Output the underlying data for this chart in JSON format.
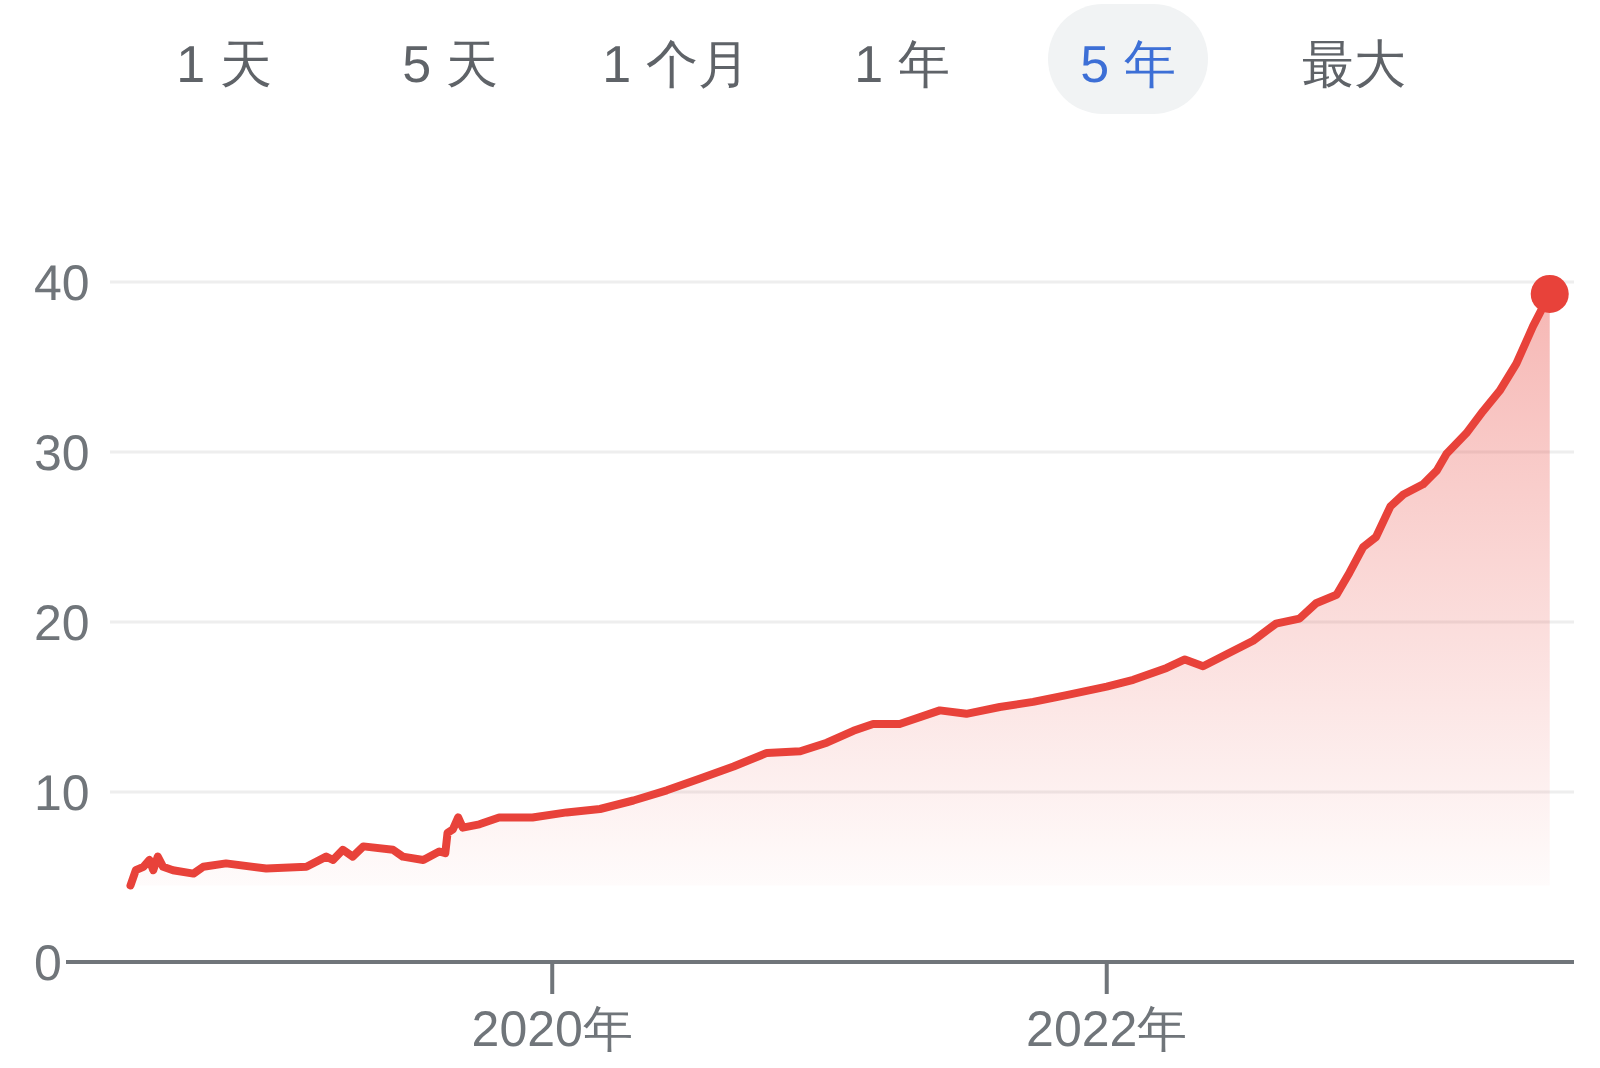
{
  "chart_data": {
    "type": "area",
    "annotations": [
      "1 天",
      "5 天",
      "1 个月",
      "1 年",
      "5 年",
      "最大"
    ],
    "x": [
      "2018-06-24",
      "2018-07-01",
      "2018-07-11",
      "2018-07-19",
      "2018-07-24",
      "2018-07-30",
      "2018-08-06",
      "2018-08-19",
      "2018-09-15",
      "2018-09-28",
      "2018-10-28",
      "2018-12-20",
      "2019-02-11",
      "2019-03-09",
      "2019-03-18",
      "2019-03-31",
      "2019-04-13",
      "2019-04-27",
      "2019-06-05",
      "2019-06-18",
      "2019-07-15",
      "2019-08-05",
      "2019-08-13",
      "2019-08-16",
      "2019-08-23",
      "2019-08-30",
      "2019-09-05",
      "2019-09-27",
      "2019-10-23",
      "2019-12-06",
      "2020-01-20",
      "2020-03-04",
      "2020-04-17",
      "2020-05-31",
      "2020-07-14",
      "2020-08-27",
      "2020-10-10",
      "2020-11-23",
      "2020-12-28",
      "2021-02-01",
      "2021-02-27",
      "2021-04-03",
      "2021-05-26",
      "2021-06-30",
      "2021-08-13",
      "2021-09-26",
      "2021-11-09",
      "2022-01-01",
      "2022-02-05",
      "2022-03-21",
      "2022-04-14",
      "2022-05-08",
      "2022-06-08",
      "2022-07-13",
      "2022-08-12",
      "2022-09-12",
      "2022-10-04",
      "2022-10-31",
      "2022-11-17",
      "2022-12-05",
      "2022-12-22",
      "2023-01-10",
      "2023-01-27",
      "2023-02-22",
      "2023-03-12",
      "2023-03-25",
      "2023-04-20",
      "2023-05-12",
      "2023-06-03",
      "2023-06-25",
      "2023-07-17",
      "2023-08-08"
    ],
    "series": [
      {
        "color": "#e8423a",
        "values": [
          4.5,
          5.4,
          5.6,
          6.0,
          5.4,
          6.2,
          5.6,
          5.4,
          5.2,
          5.6,
          5.8,
          5.5,
          5.6,
          6.2,
          6.0,
          6.6,
          6.2,
          6.8,
          6.6,
          6.2,
          6.0,
          6.5,
          6.4,
          7.6,
          7.8,
          8.5,
          7.9,
          8.1,
          8.5,
          8.5,
          8.8,
          9.0,
          9.5,
          10.1,
          10.8,
          11.5,
          12.3,
          12.4,
          12.9,
          13.6,
          14.0,
          14.0,
          14.8,
          14.6,
          15.0,
          15.3,
          15.7,
          16.2,
          16.6,
          17.3,
          17.8,
          17.4,
          18.1,
          18.9,
          19.9,
          20.2,
          21.1,
          21.6,
          22.9,
          24.4,
          25.0,
          26.8,
          27.5,
          28.1,
          28.9,
          29.9,
          31.1,
          32.4,
          33.6,
          35.2,
          37.4,
          39.3
        ]
      },
      {
        "type": "scatter",
        "color": "#e8423a",
        "marker": "circle",
        "x": [
          "2023-08-08"
        ],
        "values": [
          39.3
        ]
      }
    ],
    "xlim": [
      "2018-03-31",
      "2023-09-09"
    ],
    "xticks": [
      {
        "value": "2020-01-01",
        "label": "2020年"
      },
      {
        "value": "2022-01-01",
        "label": "2022年"
      }
    ],
    "ylim": [
      0,
      40
    ],
    "yticks": [
      0,
      10,
      20,
      30,
      40
    ],
    "grid": "y"
  }
}
